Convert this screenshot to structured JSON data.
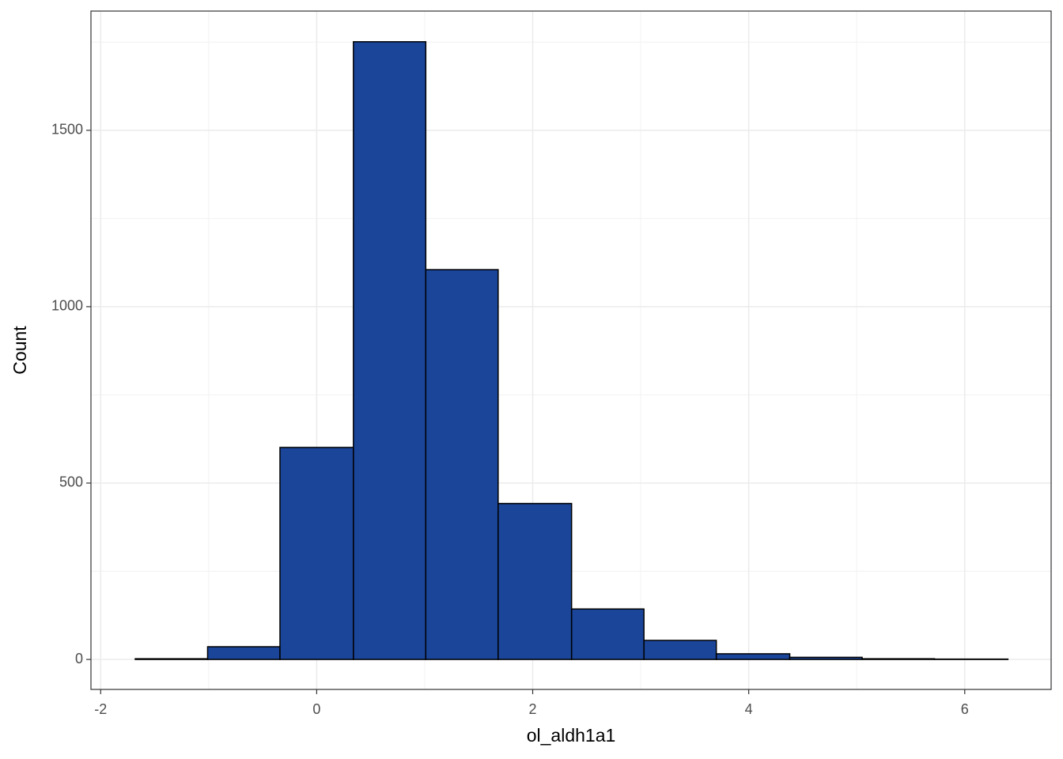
{
  "chart_data": {
    "type": "histogram",
    "x_label": "ol_aldh1a1",
    "y_label": "Count",
    "bins": [
      -1.68,
      -1.01,
      -0.34,
      0.34,
      1.01,
      1.68,
      2.36,
      3.03,
      3.7,
      4.38,
      5.05,
      5.72,
      6.4
    ],
    "values": [
      2,
      36,
      601,
      1751,
      1105,
      442,
      143,
      54,
      16,
      6,
      2,
      1
    ],
    "color": "#1a4599",
    "edge_color": "#000000",
    "xlim": [
      -2.09,
      6.8
    ],
    "ylim": [
      -85,
      1838
    ],
    "xticks": [
      -2,
      0,
      2,
      4,
      6
    ],
    "yticks": [
      0,
      500,
      1000,
      1500
    ],
    "x_minor_ticks": [
      -1,
      1,
      3,
      5
    ],
    "y_minor_ticks": [
      250,
      750,
      1250,
      1750
    ],
    "grid": true
  }
}
